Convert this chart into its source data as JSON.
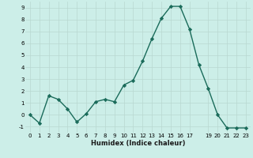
{
  "x": [
    0,
    1,
    2,
    3,
    4,
    5,
    6,
    7,
    8,
    9,
    10,
    11,
    12,
    13,
    14,
    15,
    16,
    17,
    18,
    19,
    20,
    21,
    22,
    23
  ],
  "y": [
    0,
    -0.7,
    1.6,
    1.3,
    0.5,
    -0.6,
    0.1,
    1.1,
    1.3,
    1.1,
    2.5,
    2.9,
    4.5,
    6.4,
    8.1,
    9.1,
    9.1,
    7.2,
    4.2,
    2.2,
    0.0,
    -1.1,
    -1.1,
    -1.1
  ],
  "xlim": [
    -0.5,
    23.5
  ],
  "ylim": [
    -1.5,
    9.5
  ],
  "yticks": [
    -1,
    0,
    1,
    2,
    3,
    4,
    5,
    6,
    7,
    8,
    9
  ],
  "xticks": [
    0,
    1,
    2,
    3,
    4,
    5,
    6,
    7,
    8,
    9,
    10,
    11,
    12,
    13,
    14,
    15,
    16,
    17,
    19,
    20,
    21,
    22,
    23
  ],
  "xlabel": "Humidex (Indice chaleur)",
  "line_color": "#1a6b5a",
  "marker": "D",
  "marker_size": 2.2,
  "bg_color": "#cceee8",
  "grid_color": "#b8d8d0",
  "tick_fontsize": 5.0,
  "xlabel_fontsize": 6.0
}
